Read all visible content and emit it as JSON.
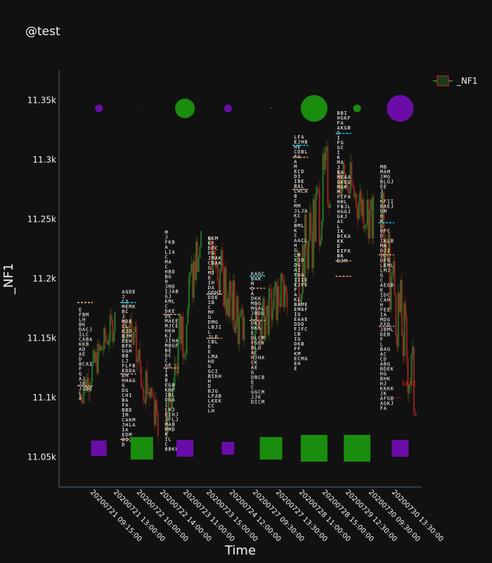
{
  "title": "@test",
  "colors": {
    "background": "#111111",
    "axis": "#506784",
    "up": "#2ca02c",
    "down": "#d62728",
    "bubble_up": "#1a8c0e",
    "bubble_down": "#6a0da8",
    "poc": "#00e5ff",
    "value_area": "#f4a582",
    "tpo_text": "#ffffff",
    "last_label": "#e0221c"
  },
  "legend": {
    "label": "_NF1"
  },
  "last_label": "last",
  "chart_data": {
    "type": "candlestick",
    "xlabel": "Time",
    "ylabel": "_NF1",
    "ylim": [
      11025,
      11375
    ],
    "yticks": [
      {
        "value": 11050,
        "label": "11.05k"
      },
      {
        "value": 11100,
        "label": "11.1k"
      },
      {
        "value": 11150,
        "label": "11.15k"
      },
      {
        "value": 11200,
        "label": "11.2k"
      },
      {
        "value": 11250,
        "label": "11.25k"
      },
      {
        "value": 11300,
        "label": "11.3k"
      },
      {
        "value": 11350,
        "label": "11.35k"
      }
    ],
    "xticks": [
      "20200721 09:15:00",
      "20200721 13:00:00",
      "20200722 10:00:00",
      "20200722 14:00:00",
      "20200723 11:00:00",
      "20200723 15:00:00",
      "20200724 12:00:00",
      "20200727 09:30:00",
      "20200727 13:30:00",
      "20200728 11:00:00",
      "20200728 15:00:00",
      "20200729 12:30:00",
      "20200730 09:30:00",
      "20200730 13:30:00"
    ],
    "sessions": [
      {
        "open": 11100,
        "high": 11175,
        "low": 11095,
        "close": 11165,
        "poc": 11180,
        "vah": 11180,
        "val": 11110,
        "top_bubble": {
          "size": 11,
          "dir": "down"
        },
        "bottom_box": {
          "size": 22,
          "dir": "down"
        }
      },
      {
        "open": 11165,
        "high": 11190,
        "low": 11055,
        "close": 11090,
        "poc": 11180,
        "vah": 11120,
        "val": 11065,
        "top_bubble": {
          "size": 2,
          "dir": "down"
        },
        "bottom_box": {
          "size": 32,
          "dir": "up"
        }
      },
      {
        "open": 11090,
        "high": 11240,
        "low": 11050,
        "close": 11230,
        "poc": 11170,
        "vah": 11170,
        "val": 11125,
        "top_bubble": {
          "size": 28,
          "dir": "up"
        },
        "bottom_box": {
          "size": 24,
          "dir": "down"
        }
      },
      {
        "open": 11230,
        "high": 11235,
        "low": 11085,
        "close": 11150,
        "poc": 11187,
        "vah": 11187,
        "val": 11150,
        "top_bubble": {
          "size": 11,
          "dir": "down"
        },
        "bottom_box": {
          "size": 18,
          "dir": "down"
        }
      },
      {
        "open": 11150,
        "high": 11205,
        "low": 11090,
        "close": 11195,
        "poc": 11202,
        "vah": 11192,
        "val": 11165,
        "top_bubble": {
          "size": 2,
          "dir": "up"
        },
        "bottom_box": {
          "size": 32,
          "dir": "up"
        }
      },
      {
        "open": 11195,
        "high": 11320,
        "low": 11120,
        "close": 11290,
        "poc": 11312,
        "vah": 11302,
        "val": 11275,
        "top_bubble": {
          "size": 38,
          "dir": "up"
        },
        "bottom_box": {
          "size": 38,
          "dir": "up"
        }
      },
      {
        "open": 11290,
        "high": 11340,
        "low": 11210,
        "close": 11250,
        "poc": 11322,
        "vah": 11215,
        "val": 11202,
        "top_bubble": {
          "size": 11,
          "dir": "up"
        },
        "bottom_box": {
          "size": 38,
          "dir": "up"
        }
      },
      {
        "open": 11250,
        "high": 11295,
        "low": 11085,
        "close": 11095,
        "poc": 11247,
        "vah": 11220,
        "val": 11160,
        "top_bubble": {
          "size": 38,
          "dir": "down"
        },
        "bottom_box": {
          "size": 24,
          "dir": "down"
        }
      }
    ],
    "last_value": 11100
  }
}
